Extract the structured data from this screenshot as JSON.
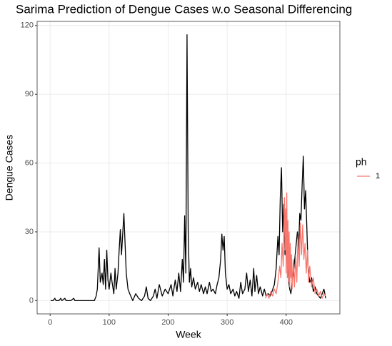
{
  "chart_data": {
    "type": "line",
    "title": "Sarima Prediction of Dengue Cases w.o Seasonal Differencing",
    "x_label": "Week",
    "y_label": "Dengue Cases",
    "legend_title": "ph",
    "grid": true,
    "legend": "right",
    "xlim": [
      -22,
      491
    ],
    "ylim": [
      -5.8,
      121.8
    ],
    "xticks": [
      0,
      100,
      200,
      300,
      400
    ],
    "yticks": [
      0,
      30,
      60,
      90,
      120
    ],
    "series": [
      {
        "color": "#000000",
        "x": [
          1,
          5,
          8,
          10,
          15,
          18,
          20,
          25,
          27,
          35,
          40,
          42,
          50,
          60,
          75,
          78,
          80,
          83,
          85,
          88,
          90,
          92,
          94,
          96,
          98,
          100,
          103,
          105,
          108,
          110,
          112,
          115,
          117,
          119,
          121,
          123,
          125,
          127,
          129,
          132,
          135,
          140,
          145,
          150,
          155,
          160,
          163,
          166,
          170,
          175,
          178,
          181,
          185,
          190,
          195,
          200,
          205,
          208,
          212,
          215,
          218,
          221,
          224,
          226,
          228,
          230,
          232,
          234,
          236,
          238,
          240,
          243,
          246,
          250,
          253,
          256,
          260,
          263,
          266,
          270,
          273,
          276,
          280,
          283,
          286,
          289,
          291,
          293,
          295,
          297,
          300,
          303,
          306,
          310,
          313,
          316,
          320,
          323,
          326,
          330,
          333,
          336,
          339,
          342,
          345,
          347,
          350,
          353,
          356,
          360,
          363,
          366,
          370,
          373,
          376,
          380,
          383,
          386,
          388,
          390,
          392,
          394,
          396,
          398,
          400,
          402,
          404,
          406,
          408,
          410,
          413,
          416,
          419,
          421,
          423,
          425,
          427,
          429,
          431,
          433,
          435,
          437,
          440,
          443,
          446,
          449,
          452,
          455,
          458,
          461,
          464,
          467
        ],
        "values": [
          0,
          0,
          1,
          0,
          0,
          1,
          0,
          1,
          0,
          0,
          1,
          0,
          0,
          0,
          0,
          2,
          5,
          23,
          8,
          12,
          7,
          18,
          5,
          22,
          9,
          5,
          12,
          8,
          3,
          14,
          5,
          12,
          22,
          31,
          20,
          29,
          38,
          25,
          12,
          5,
          3,
          0,
          3,
          1,
          0,
          2,
          6,
          1,
          0,
          2,
          5,
          1,
          7,
          2,
          5,
          3,
          7,
          2,
          9,
          4,
          12,
          4,
          18,
          8,
          37,
          12,
          116,
          30,
          8,
          14,
          6,
          10,
          5,
          8,
          4,
          7,
          3,
          6,
          3,
          8,
          4,
          5,
          3,
          7,
          10,
          18,
          29,
          22,
          28,
          12,
          5,
          7,
          3,
          5,
          2,
          4,
          1,
          8,
          3,
          5,
          12,
          4,
          9,
          2,
          14,
          4,
          11,
          3,
          6,
          2,
          5,
          2,
          3,
          2,
          4,
          7,
          14,
          28,
          20,
          45,
          58,
          30,
          42,
          20,
          35,
          18,
          9,
          5,
          3,
          8,
          14,
          22,
          30,
          22,
          38,
          35,
          50,
          63,
          40,
          48,
          32,
          15,
          8,
          10,
          4,
          6,
          3,
          2,
          1,
          3,
          5,
          1
        ]
      },
      {
        "name": "1",
        "color": "#F8766D",
        "x": [
          365,
          368,
          371,
          374,
          377,
          380,
          383,
          386,
          389,
          391,
          393,
          395,
          397,
          398,
          399,
          400,
          401,
          402,
          403,
          404,
          405,
          406,
          407,
          408,
          409,
          410,
          412,
          414,
          416,
          418,
          420,
          422,
          424,
          426,
          428,
          430,
          432,
          434,
          436,
          438,
          440,
          443,
          446,
          449,
          452,
          455,
          458,
          461,
          464,
          467
        ],
        "values": [
          1,
          3,
          1,
          4,
          2,
          5,
          3,
          8,
          15,
          10,
          25,
          15,
          45,
          22,
          40,
          12,
          47,
          10,
          35,
          8,
          30,
          6,
          25,
          10,
          20,
          5,
          18,
          6,
          20,
          8,
          28,
          15,
          34,
          20,
          33,
          18,
          25,
          12,
          22,
          8,
          15,
          6,
          10,
          3,
          5,
          2,
          4,
          1,
          3,
          2
        ]
      }
    ]
  }
}
